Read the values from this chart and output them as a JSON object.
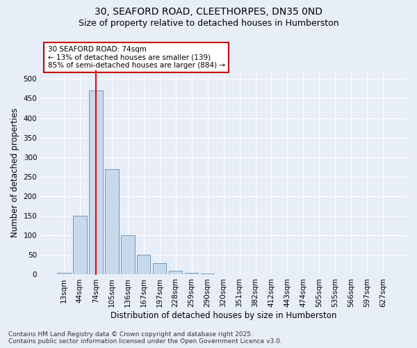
{
  "title1": "30, SEAFORD ROAD, CLEETHORPES, DN35 0ND",
  "title2": "Size of property relative to detached houses in Humberston",
  "xlabel": "Distribution of detached houses by size in Humberston",
  "ylabel": "Number of detached properties",
  "bins": [
    "13sqm",
    "44sqm",
    "74sqm",
    "105sqm",
    "136sqm",
    "167sqm",
    "197sqm",
    "228sqm",
    "259sqm",
    "290sqm",
    "320sqm",
    "351sqm",
    "382sqm",
    "412sqm",
    "443sqm",
    "474sqm",
    "505sqm",
    "535sqm",
    "566sqm",
    "597sqm",
    "627sqm"
  ],
  "values": [
    5,
    150,
    470,
    270,
    100,
    50,
    30,
    10,
    5,
    2,
    0,
    0,
    0,
    0,
    0,
    0,
    0,
    0,
    0,
    0,
    0
  ],
  "bar_color": "#c9d9ec",
  "bar_edge_color": "#5b8db8",
  "red_line_bin_index": 2,
  "annotation_text": "30 SEAFORD ROAD: 74sqm\n← 13% of detached houses are smaller (139)\n85% of semi-detached houses are larger (884) →",
  "annotation_box_color": "#ffffff",
  "annotation_box_edge_color": "#cc0000",
  "ylim": [
    0,
    520
  ],
  "yticks": [
    0,
    50,
    100,
    150,
    200,
    250,
    300,
    350,
    400,
    450,
    500
  ],
  "background_color": "#e8eef7",
  "grid_color": "#ffffff",
  "footer_text": "Contains HM Land Registry data © Crown copyright and database right 2025.\nContains public sector information licensed under the Open Government Licence v3.0.",
  "title1_fontsize": 10,
  "title2_fontsize": 9,
  "xlabel_fontsize": 8.5,
  "ylabel_fontsize": 8.5,
  "tick_fontsize": 7.5,
  "annotation_fontsize": 7.5,
  "footer_fontsize": 6.5
}
